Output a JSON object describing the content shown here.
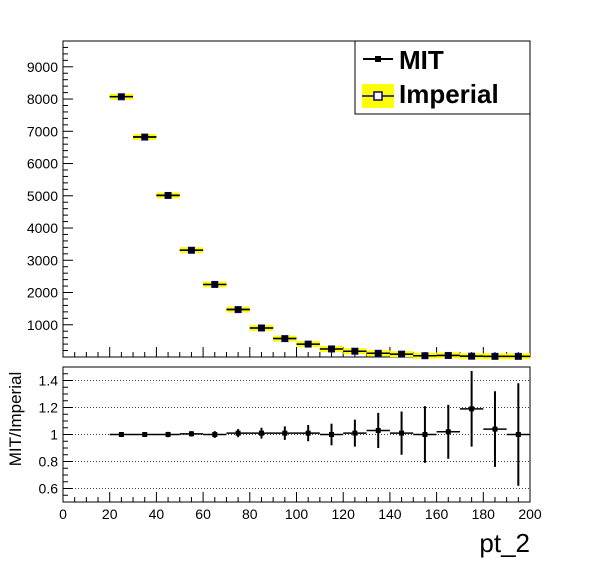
{
  "chart_data": [
    {
      "type": "line",
      "panel": "main",
      "xlim": [
        0,
        200
      ],
      "ylim": [
        0,
        9800
      ],
      "y_ticks": [
        1000,
        2000,
        3000,
        4000,
        5000,
        6000,
        7000,
        8000,
        9000
      ],
      "x": [
        25,
        35,
        45,
        55,
        65,
        75,
        85,
        95,
        105,
        115,
        125,
        135,
        145,
        155,
        165,
        175,
        185,
        195
      ],
      "series": [
        {
          "name": "MIT",
          "color": "#000000",
          "values": [
            8080,
            6830,
            5020,
            3320,
            2250,
            1480,
            900,
            580,
            400,
            250,
            180,
            120,
            90,
            40,
            50,
            30,
            20,
            20
          ]
        },
        {
          "name": "Imperial",
          "color": "#ffff00",
          "marker_color": "#000080",
          "values": [
            8070,
            6820,
            5010,
            3310,
            2250,
            1470,
            900,
            570,
            400,
            250,
            180,
            115,
            88,
            40,
            48,
            25,
            20,
            20
          ]
        }
      ],
      "legend": "top-right",
      "grid": false
    },
    {
      "type": "line",
      "panel": "ratio",
      "xlabel": "pt_2",
      "ylabel": "MIT/Imperial",
      "xlim": [
        0,
        200
      ],
      "ylim": [
        0.5,
        1.5
      ],
      "x_ticks": [
        0,
        20,
        40,
        60,
        80,
        100,
        120,
        140,
        160,
        180,
        200
      ],
      "y_ticks": [
        0.6,
        0.8,
        1,
        1.2,
        1.4
      ],
      "y_tick_labels": [
        "0.6",
        "0.8",
        "1",
        "1.2",
        "1.4"
      ],
      "grid": "horizontal-dotted",
      "x": [
        25,
        35,
        45,
        55,
        65,
        75,
        85,
        95,
        105,
        115,
        125,
        135,
        145,
        155,
        165,
        175,
        185,
        195
      ],
      "values": [
        1.0,
        1.0,
        1.0,
        1.005,
        1.0,
        1.01,
        1.01,
        1.01,
        1.01,
        1.0,
        1.01,
        1.03,
        1.01,
        1.0,
        1.02,
        1.19,
        1.04,
        1.0
      ],
      "errors": [
        0.015,
        0.015,
        0.02,
        0.02,
        0.025,
        0.03,
        0.04,
        0.05,
        0.06,
        0.08,
        0.1,
        0.13,
        0.16,
        0.21,
        0.2,
        0.28,
        0.28,
        0.38
      ]
    }
  ]
}
